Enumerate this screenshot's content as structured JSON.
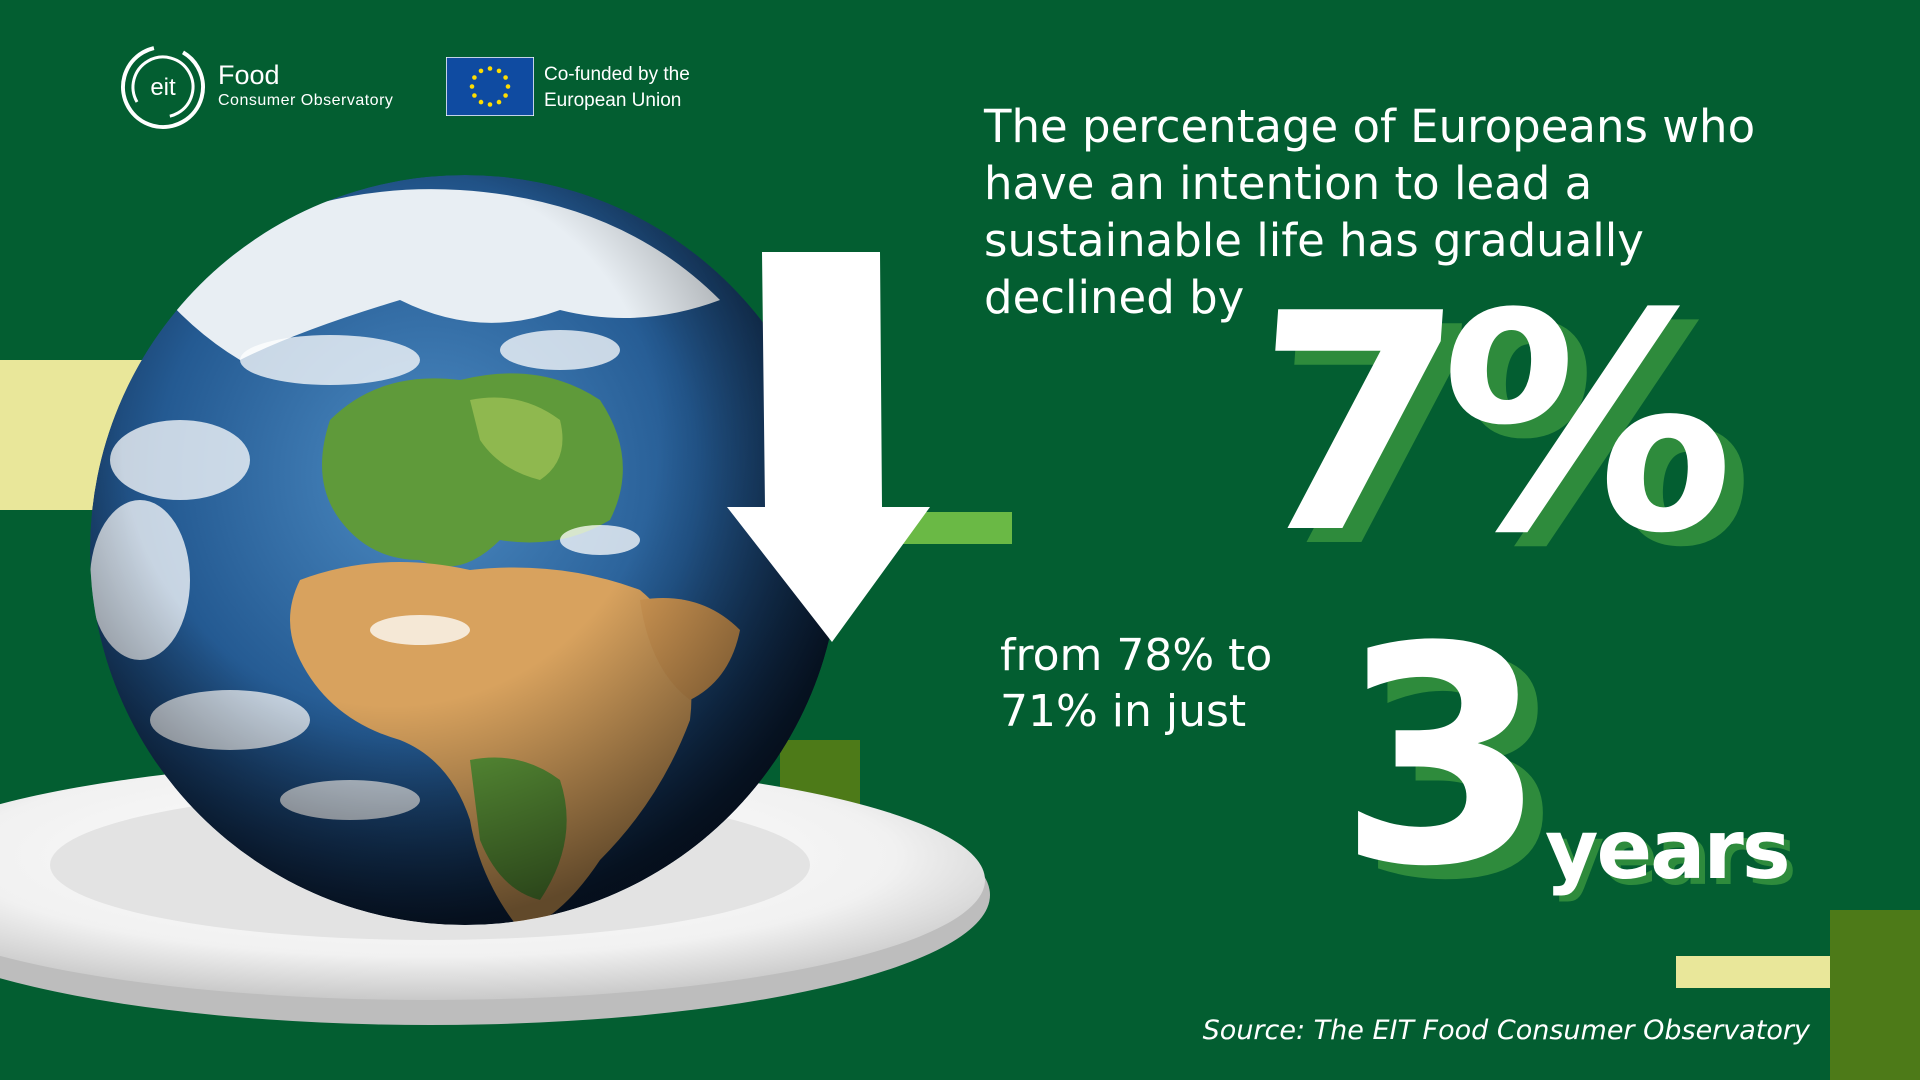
{
  "logos": {
    "eit_mark": "eit",
    "food": "Food",
    "observatory": "Consumer Observatory",
    "eu_line1": "Co-funded by the",
    "eu_line2": "European Union"
  },
  "headline": "The percentage of Europeans who have an intention to lead a sustainable life has gradually declined by",
  "stat_percent": "7%",
  "subtext": "from 78% to 71% in just",
  "stat_years_number": "3",
  "stat_years_unit": "years",
  "source": "Source: The EIT Food Consumer Observatory",
  "colors": {
    "background": "#035e31",
    "shadow_green": "#2e8b3c",
    "pale_yellow": "#e9e79a",
    "light_green": "#6ab945",
    "olive": "#4d7a18",
    "eu_blue": "#0f4ba1",
    "eu_gold": "#ffdd00"
  },
  "icons": [
    "eit-logo-icon",
    "eu-flag-icon",
    "earth-globe-image",
    "plate-image",
    "down-arrow-icon"
  ]
}
